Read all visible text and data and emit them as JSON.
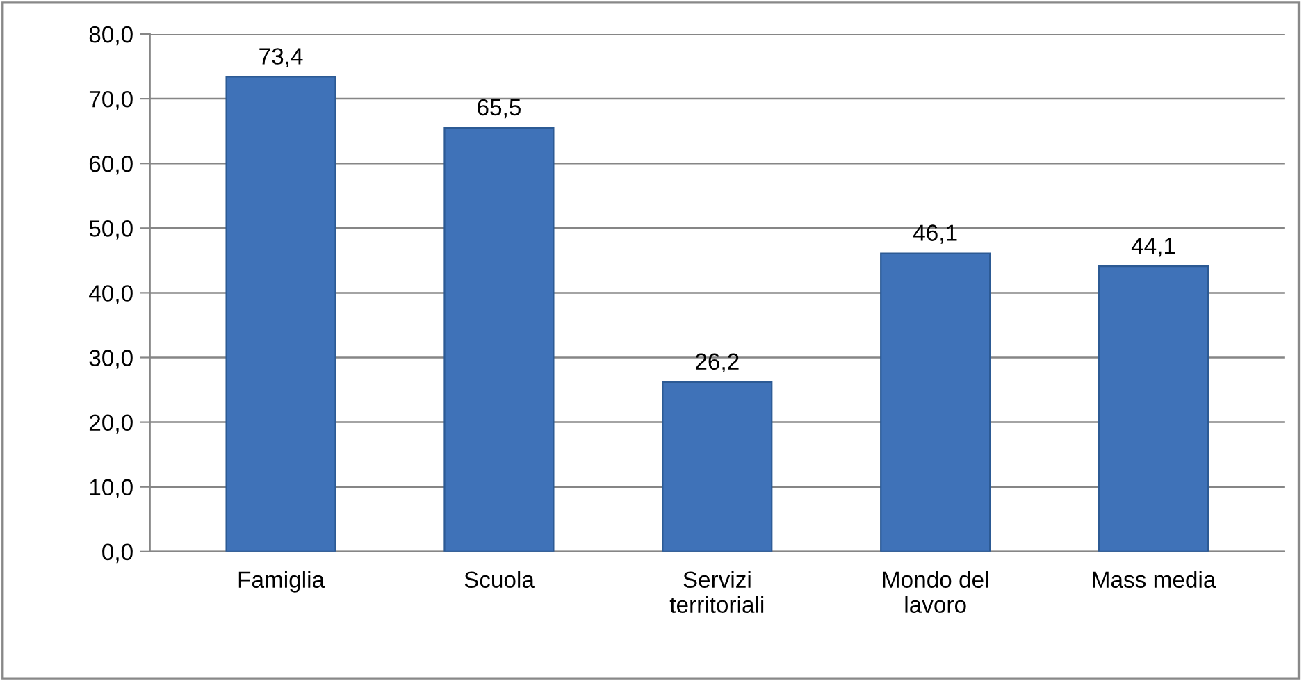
{
  "chart_data": {
    "type": "bar",
    "categories": [
      "Famiglia",
      "Scuola",
      "Servizi\nterritoriali",
      "Mondo del\nlavoro",
      "Mass media"
    ],
    "values": [
      73.4,
      65.5,
      26.2,
      46.1,
      44.1
    ],
    "value_labels": [
      "73,4",
      "65,5",
      "26,2",
      "46,1",
      "44,1"
    ],
    "color": "#3f72b8",
    "ylim": [
      0,
      80
    ],
    "yticks": [
      {
        "value": 0,
        "label": "0,0"
      },
      {
        "value": 10,
        "label": "10,0"
      },
      {
        "value": 20,
        "label": "20,0"
      },
      {
        "value": 30,
        "label": "30,0"
      },
      {
        "value": 40,
        "label": "40,0"
      },
      {
        "value": 50,
        "label": "50,0"
      },
      {
        "value": 60,
        "label": "60,0"
      },
      {
        "value": 70,
        "label": "70,0"
      },
      {
        "value": 80,
        "label": "80,0"
      }
    ],
    "grid": "y",
    "legend": false
  }
}
